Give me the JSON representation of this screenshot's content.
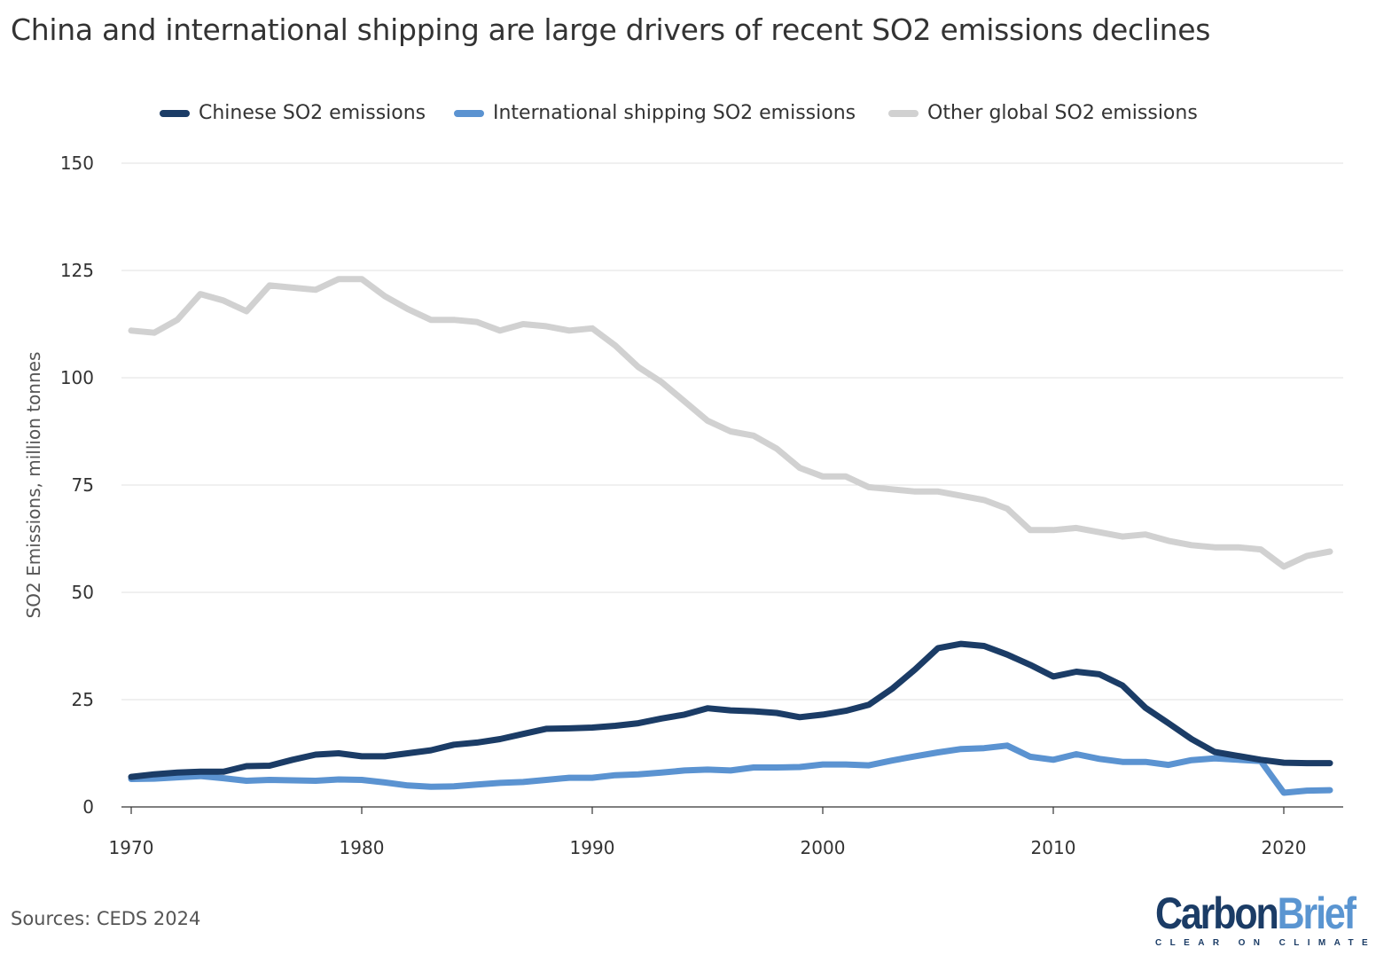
{
  "title": "China and international shipping are large drivers of recent SO2 emissions declines",
  "source": "Sources: CEDS 2024",
  "logo": {
    "carbon": "Carbon",
    "brief": "Brief",
    "tagline": "CLEAR ON CLIMATE"
  },
  "chart_data": {
    "type": "line",
    "title": "China and international shipping are large drivers of recent SO2 emissions declines",
    "xlabel": "",
    "ylabel": "SO2 Emissions, million tonnes",
    "xlim": [
      1970,
      2022
    ],
    "ylim": [
      0,
      150
    ],
    "xticks": [
      1970,
      1980,
      1990,
      2000,
      2010,
      2020
    ],
    "yticks": [
      0,
      25,
      50,
      75,
      100,
      125,
      150
    ],
    "grid": true,
    "legend_position": "top-center",
    "x": [
      1970,
      1971,
      1972,
      1973,
      1974,
      1975,
      1976,
      1977,
      1978,
      1979,
      1980,
      1981,
      1982,
      1983,
      1984,
      1985,
      1986,
      1987,
      1988,
      1989,
      1990,
      1991,
      1992,
      1993,
      1994,
      1995,
      1996,
      1997,
      1998,
      1999,
      2000,
      2001,
      2002,
      2003,
      2004,
      2005,
      2006,
      2007,
      2008,
      2009,
      2010,
      2011,
      2012,
      2013,
      2014,
      2015,
      2016,
      2017,
      2018,
      2019,
      2020,
      2021,
      2022
    ],
    "series": [
      {
        "name": "Chinese SO2 emissions",
        "color": "#1b3c66",
        "values": [
          7.0,
          7.6,
          8.0,
          8.2,
          8.2,
          9.5,
          9.6,
          11.0,
          12.2,
          12.5,
          11.8,
          11.8,
          12.5,
          13.2,
          14.5,
          15.0,
          15.8,
          17.0,
          18.2,
          18.3,
          18.5,
          18.9,
          19.5,
          20.6,
          21.5,
          23.0,
          22.5,
          22.3,
          21.9,
          20.9,
          21.5,
          22.4,
          23.8,
          27.5,
          32.0,
          37.0,
          38.0,
          37.5,
          35.5,
          33.1,
          30.4,
          31.5,
          30.9,
          28.3,
          23.1,
          19.5,
          15.8,
          12.8,
          11.9,
          11.0,
          10.3,
          10.2,
          10.2
        ]
      },
      {
        "name": "International shipping SO2 emissions",
        "color": "#5b93d1",
        "values": [
          6.5,
          6.6,
          6.9,
          7.2,
          6.7,
          6.1,
          6.3,
          6.2,
          6.1,
          6.4,
          6.3,
          5.7,
          5.0,
          4.7,
          4.8,
          5.2,
          5.6,
          5.8,
          6.3,
          6.8,
          6.8,
          7.4,
          7.6,
          8.0,
          8.5,
          8.7,
          8.5,
          9.2,
          9.2,
          9.3,
          9.9,
          9.9,
          9.7,
          10.8,
          11.8,
          12.7,
          13.5,
          13.7,
          14.3,
          11.7,
          11.0,
          12.3,
          11.2,
          10.5,
          10.5,
          9.8,
          10.9,
          11.3,
          11.0,
          10.7,
          3.3,
          3.8,
          3.9
        ]
      },
      {
        "name": "Other global SO2 emissions",
        "color": "#d1d1d1",
        "values": [
          111,
          110.5,
          113.5,
          119.5,
          118,
          115.5,
          121.5,
          121,
          120.5,
          123,
          123,
          119,
          116,
          113.5,
          113.5,
          113,
          111,
          112.5,
          112,
          111,
          111.5,
          107.5,
          102.5,
          99,
          94.5,
          90,
          87.5,
          86.5,
          83.5,
          79,
          77,
          77,
          74.5,
          74,
          73.5,
          73.5,
          72.5,
          71.5,
          69.5,
          64.5,
          64.5,
          65,
          64,
          63,
          63.5,
          62,
          61,
          60.5,
          60.5,
          60,
          56,
          58.5,
          59.5
        ]
      }
    ]
  }
}
